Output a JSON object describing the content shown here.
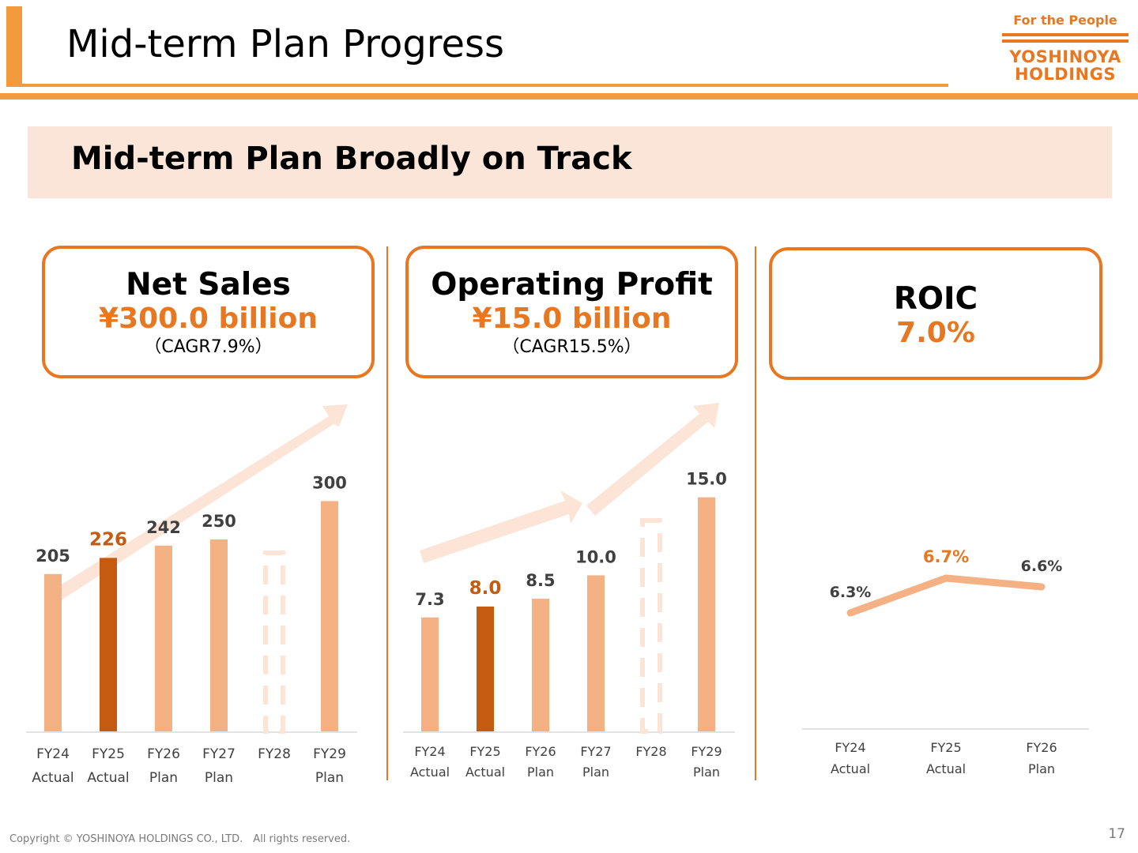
{
  "header": {
    "title": "Mid-term Plan Progress",
    "logo": {
      "tagline": "For the People",
      "line1": "YOSHINOYA",
      "line2": "HOLDINGS"
    }
  },
  "banner": {
    "text": "Mid-term Plan Broadly on Track"
  },
  "kpis": [
    {
      "name": "Net Sales",
      "value": "¥300.0 billion",
      "sub": "（CAGR7.9%）"
    },
    {
      "name": "Operating Profit",
      "value": "¥15.0 billion",
      "sub": "（CAGR15.5%）"
    },
    {
      "name": "ROIC",
      "value": "7.0%"
    }
  ],
  "colors": {
    "accent": "#F39A3C",
    "brand_orange": "#E87722",
    "bar": "#F4B183",
    "bar_highlight": "#C55A11",
    "label_text": "#404040",
    "banner_bg": "#FBE5D9",
    "arrow": "#FCE4D6"
  },
  "chart_data": [
    {
      "type": "bar",
      "categories": [
        "FY24",
        "FY25",
        "FY26",
        "FY27",
        "FY28",
        "FY29"
      ],
      "category_sublabels": [
        "Actual",
        "Actual",
        "Plan",
        "Plan",
        "",
        "Plan"
      ],
      "values": [
        205,
        226,
        242,
        250,
        null,
        300
      ],
      "data_labels": [
        "205",
        "226",
        "242",
        "250",
        "",
        "300"
      ],
      "highlight_index": 1,
      "placeholder_index": 4,
      "ylim": [
        0,
        320
      ]
    },
    {
      "type": "bar",
      "categories": [
        "FY24",
        "FY25",
        "FY26",
        "FY27",
        "FY28",
        "FY29"
      ],
      "category_sublabels": [
        "Actual",
        "Actual",
        "Plan",
        "Plan",
        "",
        "Plan"
      ],
      "values": [
        7.3,
        8.0,
        8.5,
        10.0,
        null,
        15.0
      ],
      "data_labels": [
        "7.3",
        "8.0",
        "8.5",
        "10.0",
        "",
        "15.0"
      ],
      "highlight_index": 1,
      "placeholder_index": 4,
      "ylim": [
        0,
        16.5
      ]
    },
    {
      "type": "line",
      "categories": [
        "FY24",
        "FY25",
        "FY26"
      ],
      "category_sublabels": [
        "Actual",
        "Actual",
        "Plan"
      ],
      "values": [
        6.3,
        6.7,
        6.6
      ],
      "data_labels": [
        "6.3%",
        "6.7%",
        "6.6%"
      ],
      "highlight_index": 1
    }
  ],
  "footer": {
    "copyright": "Copyright © YOSHINOYA HOLDINGS CO., LTD.　All rights reserved.",
    "page_number": "17"
  }
}
